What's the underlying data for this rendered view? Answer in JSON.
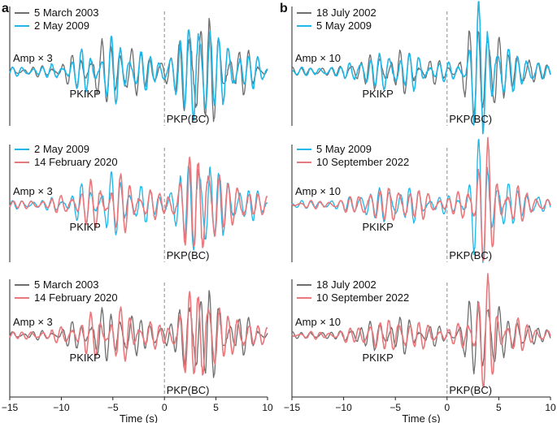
{
  "panel_labels": [
    "a",
    "b"
  ],
  "colors": {
    "gray": "#6e6e6e",
    "cyan": "#1fb6e8",
    "red": "#e8787c",
    "axis": "#222222",
    "dash": "#888888"
  },
  "chart_data": [
    {
      "id": "a1",
      "type": "line",
      "column": "a",
      "row": 1,
      "series": [
        {
          "name": "5 March 2003",
          "color": "#6e6e6e",
          "seed": 11
        },
        {
          "name": "2 May 2009",
          "color": "#1fb6e8",
          "seed": 12
        }
      ],
      "amp_label": "Amp × 3",
      "phase_left": "PKIKP",
      "phase_right": "PKP(BC)",
      "xlim": [
        -15,
        10
      ]
    },
    {
      "id": "a2",
      "type": "line",
      "column": "a",
      "row": 2,
      "series": [
        {
          "name": "2 May 2009",
          "color": "#1fb6e8",
          "seed": 12
        },
        {
          "name": "14 February 2020",
          "color": "#e8787c",
          "seed": 13
        }
      ],
      "amp_label": "Amp × 3",
      "phase_left": "PKIKP",
      "phase_right": "PKP(BC)",
      "xlim": [
        -15,
        10
      ]
    },
    {
      "id": "a3",
      "type": "line",
      "column": "a",
      "row": 3,
      "series": [
        {
          "name": "5 March 2003",
          "color": "#6e6e6e",
          "seed": 11
        },
        {
          "name": "14 February 2020",
          "color": "#e8787c",
          "seed": 13
        }
      ],
      "amp_label": "Amp × 3",
      "phase_left": "PKIKP",
      "phase_right": "PKP(BC)",
      "xlim": [
        -15,
        10
      ]
    },
    {
      "id": "b1",
      "type": "line",
      "column": "b",
      "row": 1,
      "series": [
        {
          "name": "18 July 2002",
          "color": "#6e6e6e",
          "seed": 21
        },
        {
          "name": "5 May 2009",
          "color": "#1fb6e8",
          "seed": 22
        }
      ],
      "amp_label": "Amp × 10",
      "phase_left": "PKIKP",
      "phase_right": "PKP(BC)",
      "xlim": [
        -15,
        10
      ]
    },
    {
      "id": "b2",
      "type": "line",
      "column": "b",
      "row": 2,
      "series": [
        {
          "name": "5 May 2009",
          "color": "#1fb6e8",
          "seed": 22
        },
        {
          "name": "10 September 2022",
          "color": "#e8787c",
          "seed": 23
        }
      ],
      "amp_label": "Amp × 10",
      "phase_left": "PKIKP",
      "phase_right": "PKP(BC)",
      "xlim": [
        -15,
        10
      ]
    },
    {
      "id": "b3",
      "type": "line",
      "column": "b",
      "row": 3,
      "series": [
        {
          "name": "18 July 2002",
          "color": "#6e6e6e",
          "seed": 21
        },
        {
          "name": "10 September 2022",
          "color": "#e8787c",
          "seed": 23
        }
      ],
      "amp_label": "Amp × 10",
      "phase_left": "PKIKP",
      "phase_right": "PKP(BC)",
      "xlim": [
        -15,
        10
      ]
    }
  ],
  "x_axis": {
    "ticks": [
      -15,
      -10,
      -5,
      0,
      5,
      10
    ],
    "tick_labels": [
      "−15",
      "−10",
      "−5",
      "0",
      "5",
      "10"
    ],
    "title": "Time (s)"
  }
}
